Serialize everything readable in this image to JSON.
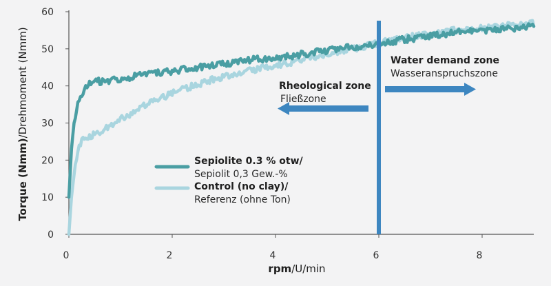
{
  "chart_data": {
    "type": "line",
    "xlabel_bold": "rpm",
    "xlabel_rest": "/U/min",
    "ylabel_bold": "Torque (Nmm)",
    "ylabel_rest": "/Drehmoment (Nmm)",
    "xlim": [
      0,
      9
    ],
    "ylim": [
      0,
      60
    ],
    "xticks": [
      "0",
      "2",
      "4",
      "6",
      "8"
    ],
    "yticks": [
      "0",
      "10",
      "20",
      "30",
      "40",
      "50",
      "60"
    ],
    "grid": false,
    "legend_position": "center-left",
    "series": [
      {
        "name": "Sepiolite 0.3 % otw/",
        "name_de": "Sepiolit 0,3 Gew.-%",
        "color": "#4a9ea3",
        "x": [
          0,
          0.05,
          0.1,
          0.15,
          0.2,
          0.3,
          0.4,
          0.5,
          0.6,
          0.8,
          1.0,
          1.5,
          2.0,
          2.5,
          3.0,
          3.5,
          4.0,
          4.5,
          5.0,
          5.5,
          6.0,
          6.5,
          7.0,
          7.5,
          8.0,
          8.5,
          9.0
        ],
        "values": [
          10,
          23,
          30,
          34,
          36,
          39,
          40.5,
          42,
          41,
          41.5,
          42,
          43,
          44,
          45,
          46,
          47,
          47.5,
          48.5,
          49.5,
          50.5,
          51.5,
          52.5,
          53.5,
          54.5,
          55,
          55.5,
          56
        ]
      },
      {
        "name": "Control (no clay)/",
        "name_de": "Referenz (ohne Ton)",
        "color": "#a9d5df",
        "x": [
          0,
          0.05,
          0.1,
          0.15,
          0.2,
          0.3,
          0.5,
          0.8,
          1.0,
          1.5,
          2.0,
          2.5,
          3.0,
          3.5,
          4.0,
          4.5,
          5.0,
          5.5,
          6.0,
          6.5,
          7.0,
          7.5,
          8.0,
          8.5,
          9.0
        ],
        "values": [
          0,
          10,
          16,
          21,
          24,
          26,
          27,
          29,
          31,
          35,
          38,
          40.5,
          42.5,
          44,
          45.5,
          47,
          48.5,
          50,
          51.5,
          53,
          54,
          55,
          55.5,
          56.5,
          57
        ]
      }
    ],
    "divider_x": 6,
    "annotations": {
      "left_title": "Rheological zone",
      "left_sub": "Fließzone",
      "right_title": "Water demand zone",
      "right_sub": "Wasseranspruchszone"
    },
    "colors": {
      "arrow": "#3d86c0",
      "divider": "#3d86c0",
      "axis": "#555555"
    }
  }
}
